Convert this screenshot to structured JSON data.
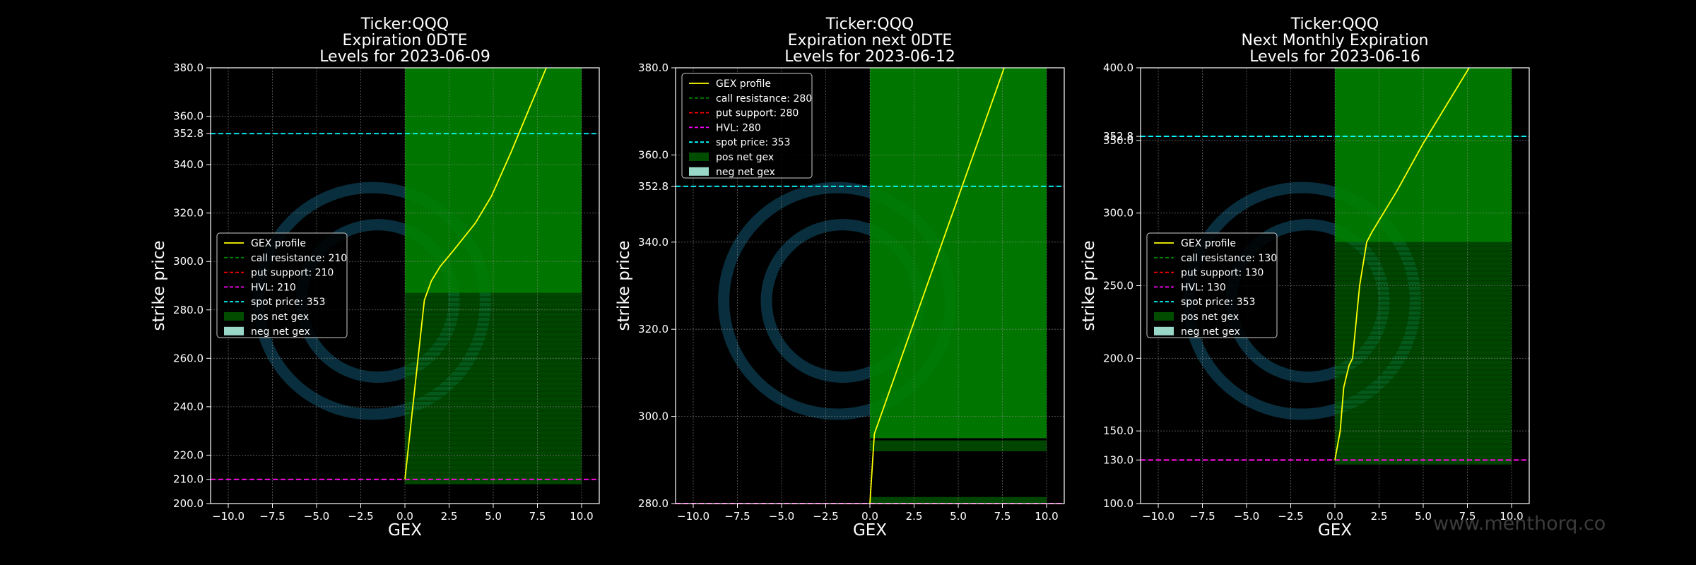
{
  "watermark": "www.menthorq.co",
  "colors": {
    "background": "#000000",
    "gex_profile": "#ffff00",
    "call_resistance": "#008000",
    "put_support": "#ff0000",
    "hvl": "#ff00ff",
    "spot_price": "#00ffff",
    "pos_net_gex": "#008000",
    "neg_net_gex": "#99d8c9",
    "grid": "#8c8c8c",
    "logo": "#0b3344"
  },
  "chart_data": [
    {
      "type": "line",
      "title": [
        "Ticker:QQQ",
        "Expiration 0DTE",
        "Levels for 2023-06-09"
      ],
      "xlabel": "GEX",
      "ylabel": "strike price",
      "xlim": [
        -11,
        11
      ],
      "ylim": [
        200,
        380
      ],
      "xticks": [
        "−10.0",
        "−7.5",
        "−5.0",
        "−2.5",
        "0.0",
        "2.5",
        "5.0",
        "7.5",
        "10.0"
      ],
      "xtick_values": [
        -10,
        -7.5,
        -5,
        -2.5,
        0,
        2.5,
        5,
        7.5,
        10
      ],
      "yticks": [
        "200.0",
        "210.0",
        "220.0",
        "240.0",
        "260.0",
        "280.0",
        "300.0",
        "320.0",
        "340.0",
        "352.8",
        "360.0",
        "380.0"
      ],
      "ytick_values": [
        200,
        210,
        220,
        240,
        260,
        280,
        300,
        320,
        340,
        352.8,
        360,
        380
      ],
      "grid": true,
      "gex_profile": {
        "x": [
          0,
          1.1,
          1.5,
          2.0,
          2.8,
          4.0,
          4.9,
          6.0,
          7.2,
          8.0
        ],
        "y": [
          210,
          284,
          292,
          298,
          305,
          316,
          327,
          345,
          366,
          380
        ]
      },
      "pos_net_gex": [
        {
          "x0": 0,
          "x1": 10,
          "y0": 287,
          "y1": 380,
          "shade": "light"
        },
        {
          "x0": 0,
          "x1": 10,
          "y0": 208,
          "y1": 287,
          "shade": "dark"
        }
      ],
      "levels": {
        "call_resistance": 210,
        "put_support": 210,
        "hvl": 210,
        "spot_price": 352.8
      },
      "legend": {
        "position": "center-left",
        "entries": [
          "GEX profile",
          "call resistance: 210",
          "put support: 210",
          "HVL: 210",
          "spot price: 353",
          "pos net gex",
          "neg net gex"
        ]
      }
    },
    {
      "type": "line",
      "title": [
        "Ticker:QQQ",
        "Expiration next 0DTE",
        "Levels for 2023-06-12"
      ],
      "xlabel": "GEX",
      "ylabel": "strike price",
      "xlim": [
        -11,
        11
      ],
      "ylim": [
        280,
        380
      ],
      "xticks": [
        "−10.0",
        "−7.5",
        "−5.0",
        "−2.5",
        "0.0",
        "2.5",
        "5.0",
        "7.5",
        "10.0"
      ],
      "xtick_values": [
        -10,
        -7.5,
        -5,
        -2.5,
        0,
        2.5,
        5,
        7.5,
        10
      ],
      "yticks": [
        "280.0",
        "300.0",
        "320.0",
        "340.0",
        "352.8",
        "360.0",
        "380.0"
      ],
      "ytick_values": [
        280,
        300,
        320,
        340,
        352.8,
        360,
        380
      ],
      "grid": true,
      "gex_profile": {
        "x": [
          0,
          0.25,
          7.6
        ],
        "y": [
          280,
          296,
          380
        ]
      },
      "pos_net_gex": [
        {
          "x0": 0,
          "x1": 10,
          "y0": 295,
          "y1": 380,
          "shade": "light"
        },
        {
          "x0": 0,
          "x1": 10,
          "y0": 292,
          "y1": 294.5,
          "shade": "dark"
        },
        {
          "x0": 0,
          "x1": 10,
          "y0": 280,
          "y1": 281.5,
          "shade": "dark"
        }
      ],
      "levels": {
        "call_resistance": 280,
        "put_support": 280,
        "hvl": 280,
        "spot_price": 352.8
      },
      "legend": {
        "position": "upper-left",
        "entries": [
          "GEX profile",
          "call resistance: 280",
          "put support: 280",
          "HVL: 280",
          "spot price: 353",
          "pos net gex",
          "neg net gex"
        ]
      }
    },
    {
      "type": "line",
      "title": [
        "Ticker:QQQ",
        "Next Monthly Expiration",
        "Levels for 2023-06-16"
      ],
      "xlabel": "GEX",
      "ylabel": "strike price",
      "xlim": [
        -11,
        11
      ],
      "ylim": [
        100,
        400
      ],
      "xticks": [
        "−10.0",
        "−7.5",
        "−5.0",
        "−2.5",
        "0.0",
        "2.5",
        "5.0",
        "7.5",
        "10.0"
      ],
      "xtick_values": [
        -10,
        -7.5,
        -5,
        -2.5,
        0,
        2.5,
        5,
        7.5,
        10
      ],
      "yticks": [
        "100.0",
        "130.0",
        "150.0",
        "200.0",
        "250.0",
        "300.0",
        "350.0",
        "352.8",
        "400.0"
      ],
      "ytick_values": [
        100,
        130,
        150,
        200,
        250,
        300,
        350,
        352.8,
        400
      ],
      "grid": true,
      "gex_profile": {
        "x": [
          0,
          0.3,
          0.5,
          0.8,
          1.0,
          1.4,
          1.8,
          2.1,
          3.5,
          5.0,
          7.6
        ],
        "y": [
          130,
          150,
          180,
          195,
          200,
          250,
          280,
          287,
          315,
          348,
          400
        ]
      },
      "pos_net_gex": [
        {
          "x0": 0,
          "x1": 10,
          "y0": 280,
          "y1": 400,
          "shade": "light"
        },
        {
          "x0": 0,
          "x1": 10,
          "y0": 127,
          "y1": 280,
          "shade": "dark"
        }
      ],
      "levels": {
        "call_resistance": 130,
        "put_support": 130,
        "hvl": 130,
        "spot_price": 352.8
      },
      "legend": {
        "position": "center-left",
        "entries": [
          "GEX profile",
          "call resistance: 130",
          "put support: 130",
          "HVL: 130",
          "spot price: 353",
          "pos net gex",
          "neg net gex"
        ]
      }
    }
  ]
}
